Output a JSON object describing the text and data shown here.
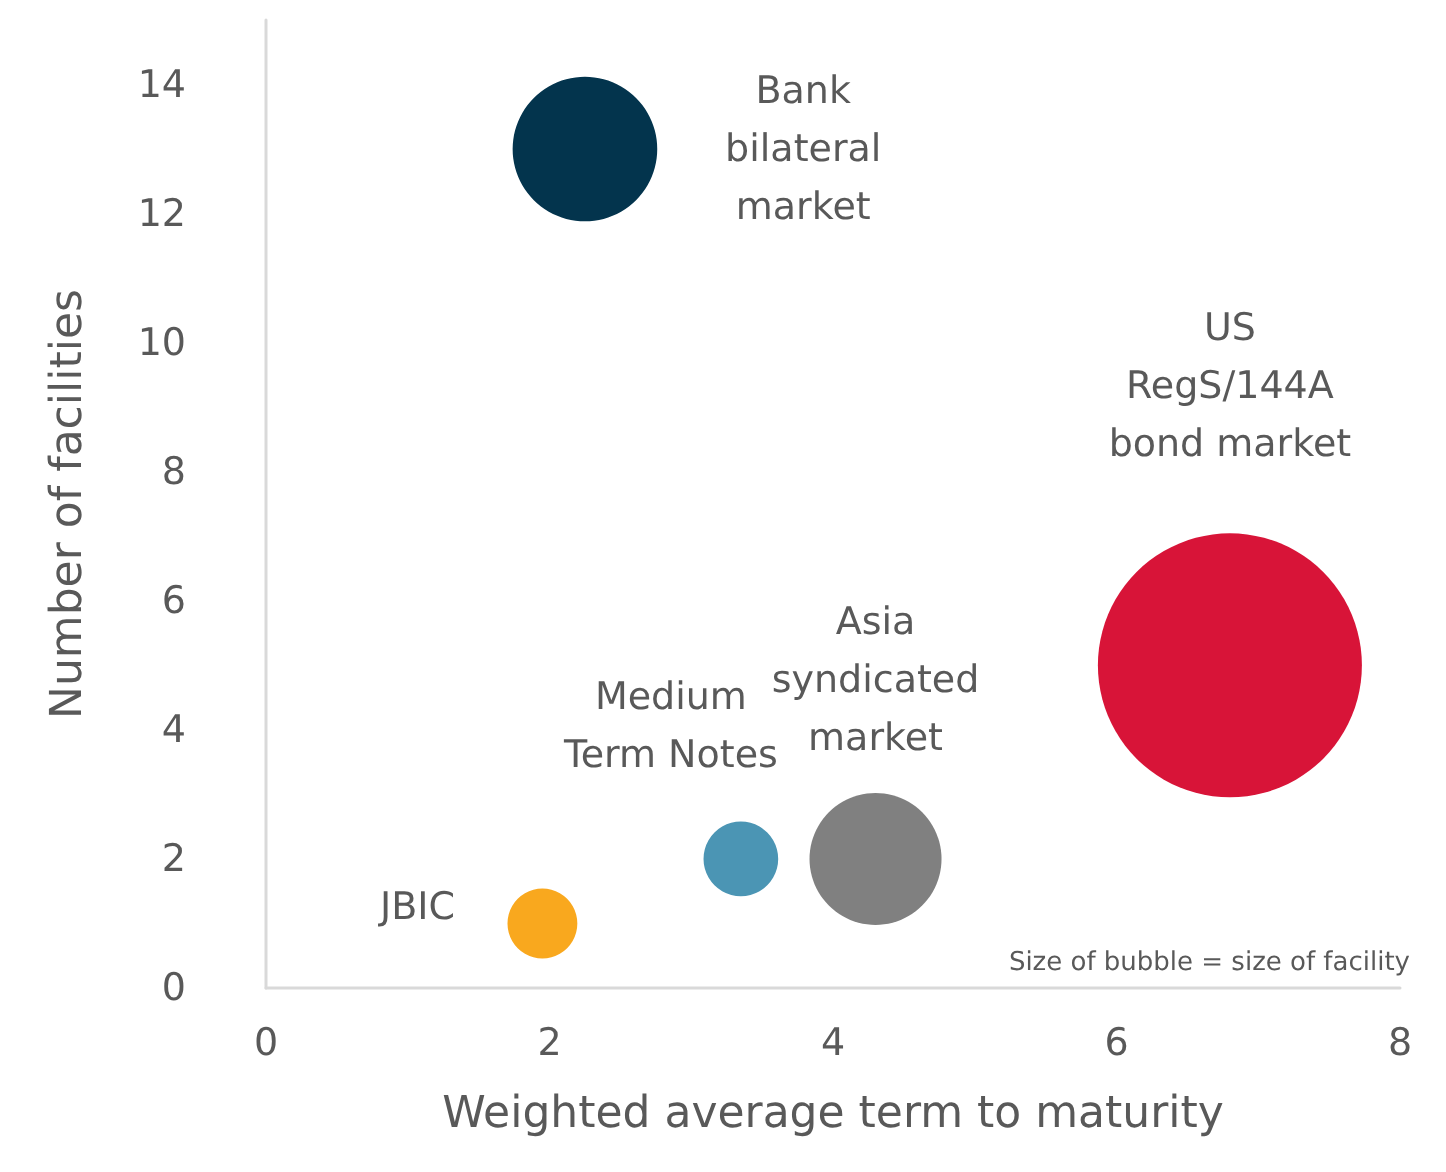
{
  "chart_data": {
    "type": "bubble",
    "xlabel": "Weighted average term to maturity",
    "ylabel": "Number of facilities",
    "xlim": [
      0,
      8
    ],
    "xticks": [
      0,
      2,
      4,
      6,
      8
    ],
    "ylim": [
      0,
      15
    ],
    "yticks": [
      0,
      2,
      4,
      6,
      8,
      10,
      12,
      14
    ],
    "grid": false,
    "legend": false,
    "marker": "circle",
    "series": [
      {
        "name": "Bank\nbilateral\nmarket",
        "color": "#03344d",
        "x": [
          2.25
        ],
        "values": [
          13
        ],
        "sizes": [
          0.3
        ]
      },
      {
        "name": "US\nRegS/144A\nbond market",
        "color": "#d81438",
        "x": [
          6.8
        ],
        "values": [
          5
        ],
        "sizes": [
          1
        ]
      },
      {
        "name": "Asia\nsyndicated\nmarket",
        "color": "#808080",
        "x": [
          4.3
        ],
        "values": [
          2
        ],
        "sizes": [
          0.25
        ]
      },
      {
        "name": "Medium\nTerm Notes",
        "color": "#4b95b4",
        "x": [
          3.35
        ],
        "values": [
          2
        ],
        "sizes": [
          0.08
        ]
      },
      {
        "name": "JBIC",
        "color": "#f9a81e",
        "x": [
          1.95
        ],
        "values": [
          1
        ],
        "sizes": [
          0.07
        ]
      }
    ],
    "annotations": [
      "Size of bubble = size of facility"
    ]
  }
}
